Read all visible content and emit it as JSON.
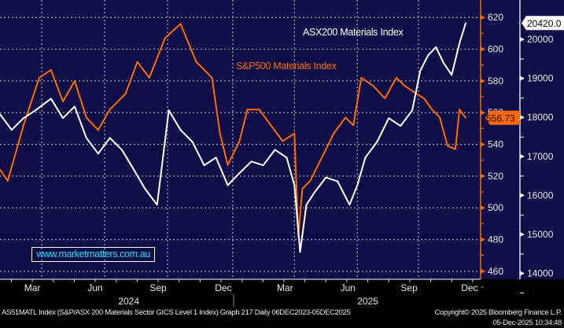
{
  "chart_data": {
    "type": "line",
    "x_unit": "months since start of Dec 2023",
    "xlim": [
      1.46,
      24.38
    ],
    "x_ticks": [
      {
        "label": "Mar",
        "m": 3.45
      },
      {
        "label": "Jun",
        "m": 6.45
      },
      {
        "label": "Sep",
        "m": 9.45
      },
      {
        "label": "Dec",
        "m": 12.56
      },
      {
        "label": "Mar",
        "m": 15.5
      },
      {
        "label": "Jun",
        "m": 18.5
      },
      {
        "label": "Sep",
        "m": 21.42
      },
      {
        "label": "Dec",
        "m": 24.3
      }
    ],
    "years": [
      {
        "label": "2024",
        "m": 7.6
      },
      {
        "label": "2025",
        "m": 19.0
      }
    ],
    "left_axis": {
      "series": "S&P500 Materials Index",
      "ylim": [
        455,
        631
      ],
      "ticks": [
        620,
        600,
        580,
        560,
        540,
        520,
        500,
        480,
        460
      ]
    },
    "right_axis": {
      "series": "ASX200 Materials Index",
      "ylim": [
        13850,
        21010
      ],
      "ticks": [
        20000,
        19000,
        18000,
        17000,
        16000,
        15000,
        14000
      ]
    },
    "series": [
      {
        "name": "S&P500 Materials Index",
        "axis": "left",
        "color": "#ff6a00",
        "last_label": "556.73",
        "x": [
          1.46,
          1.83,
          2.58,
          3.33,
          3.89,
          4.46,
          5.02,
          5.58,
          6.14,
          6.7,
          7.45,
          8.01,
          8.58,
          9.33,
          10.07,
          10.82,
          11.57,
          11.95,
          12.32,
          12.88,
          13.26,
          13.82,
          14.38,
          14.94,
          15.5,
          15.69,
          15.88,
          16.25,
          16.82,
          17.38,
          17.94,
          18.31,
          18.69,
          19.25,
          19.81,
          20.37,
          20.75,
          21.31,
          21.68,
          22.06,
          22.43,
          22.81,
          23.18,
          23.37,
          23.67
        ],
        "y": [
          524,
          517,
          552,
          582,
          587,
          567,
          580,
          557,
          549,
          562,
          572,
          592,
          582,
          607,
          616,
          592,
          582,
          547,
          527,
          542,
          562,
          562,
          552,
          542,
          547,
          482,
          512,
          517,
          532,
          547,
          557,
          552,
          582,
          577,
          569,
          582,
          577,
          572,
          569,
          562,
          557,
          539,
          537,
          562,
          556.73
        ]
      },
      {
        "name": "ASX200 Materials Index",
        "axis": "right",
        "color": "#ffffff",
        "last_label": "20420.0",
        "x": [
          1.46,
          2.02,
          2.58,
          3.15,
          3.89,
          4.46,
          5.02,
          5.58,
          6.14,
          6.7,
          7.27,
          7.83,
          8.39,
          8.95,
          9.14,
          9.51,
          10.07,
          10.64,
          11.2,
          11.76,
          12.32,
          12.88,
          13.45,
          14.01,
          14.57,
          15.13,
          15.5,
          15.77,
          16.07,
          16.44,
          17.0,
          17.56,
          18.13,
          18.5,
          18.88,
          19.44,
          20.0,
          20.56,
          21.12,
          21.5,
          21.87,
          22.25,
          22.62,
          23.0,
          23.37,
          23.67
        ],
        "y": [
          18080,
          17680,
          17980,
          18180,
          18480,
          17980,
          18280,
          17475,
          17070,
          17475,
          17170,
          16670,
          16160,
          15760,
          16570,
          18180,
          17680,
          17370,
          16770,
          16970,
          16260,
          16570,
          16870,
          16770,
          17170,
          16970,
          16260,
          14545,
          15760,
          16060,
          16460,
          16360,
          15760,
          16260,
          16970,
          17370,
          17980,
          17780,
          18180,
          19190,
          19590,
          19800,
          19390,
          19090,
          19900,
          20420
        ]
      }
    ],
    "annotations": [
      "ASX200 Materials Index",
      "S&P500 Materials Index"
    ]
  },
  "watermark": "www.marketmatters.com.au",
  "footer": {
    "description": "AS51MATL Index (S&P/ASX 200 Materials Sector GICS Level 1 Index) Graph 217 Daily 06DEC2023-05DEC2025",
    "copyright": "Copyright© 2025 Bloomberg Finance L.P.",
    "timestamp": "05-Dec-2025 10:34:48"
  },
  "colors": {
    "background": "#100e48",
    "orange": "#ff6a00",
    "watermark_text": "#19e0e8"
  }
}
